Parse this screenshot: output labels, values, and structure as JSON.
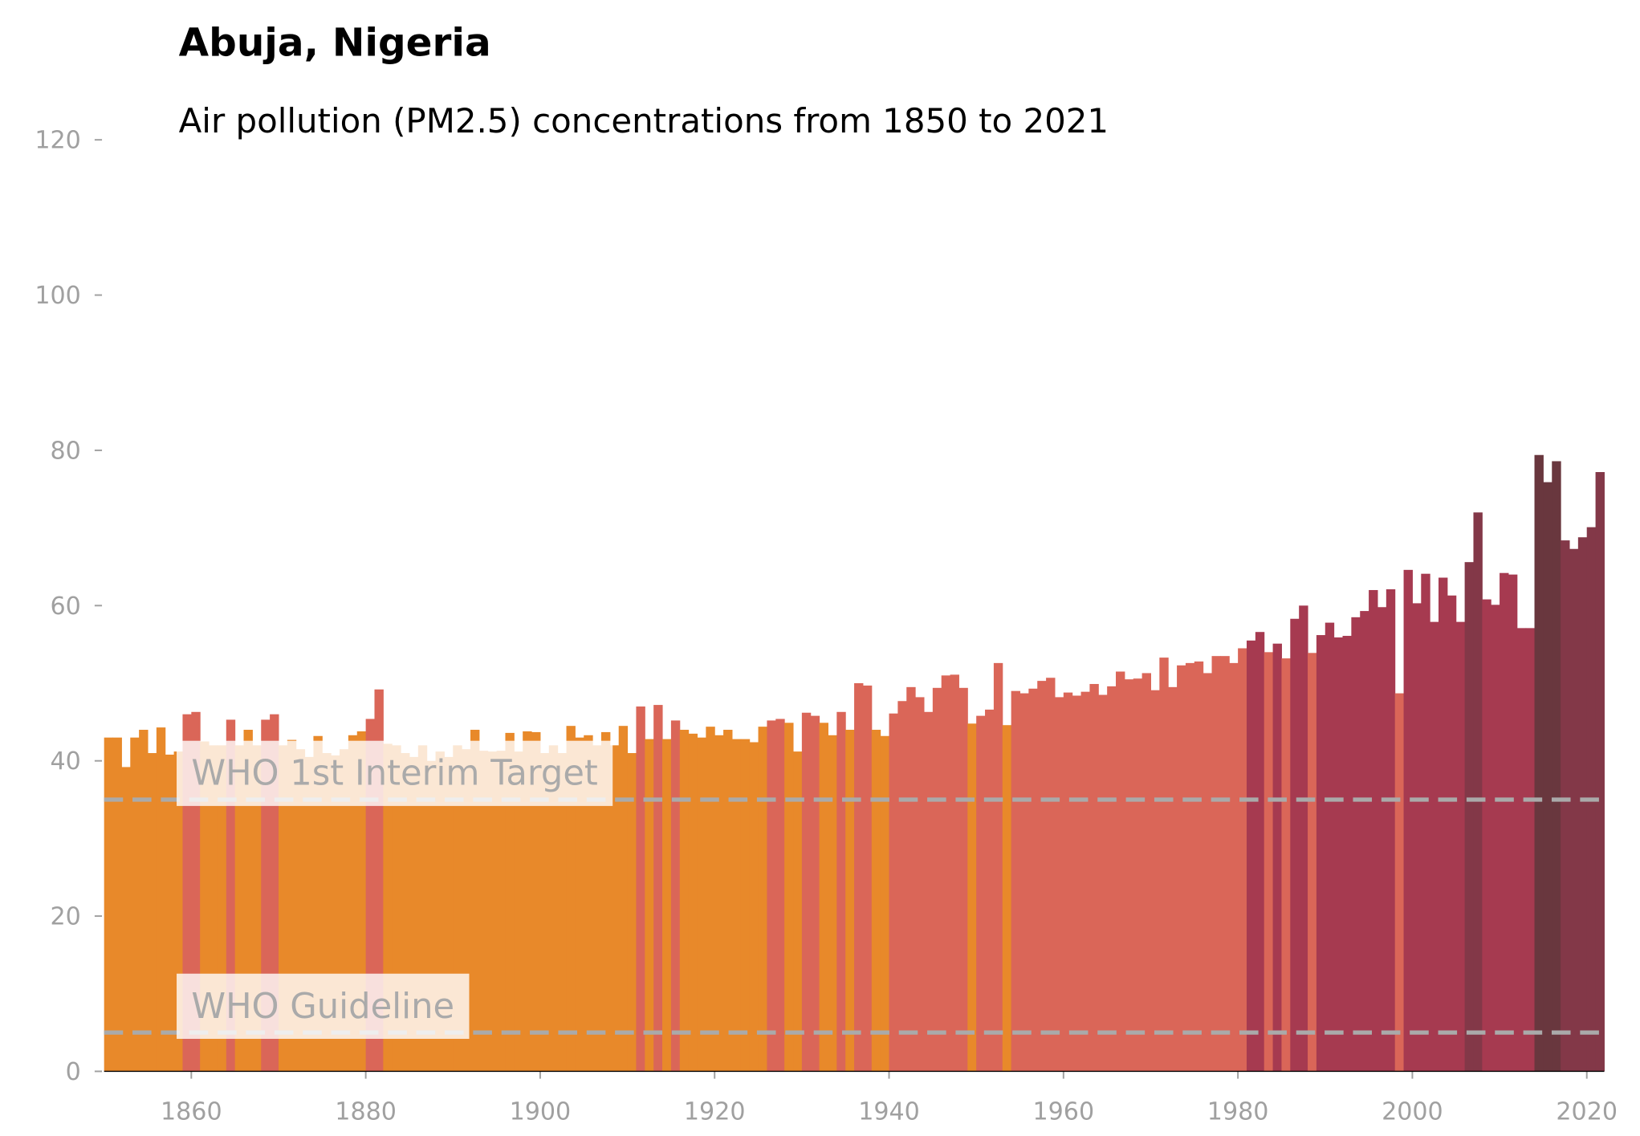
{
  "chart_data": {
    "type": "bar",
    "title": "Abuja, Nigeria",
    "subtitle": "Air pollution (PM2.5) concentrations from 1850 to 2021",
    "x": [
      1850,
      1851,
      1852,
      1853,
      1854,
      1855,
      1856,
      1857,
      1858,
      1859,
      1860,
      1861,
      1862,
      1863,
      1864,
      1865,
      1866,
      1867,
      1868,
      1869,
      1870,
      1871,
      1872,
      1873,
      1874,
      1875,
      1876,
      1877,
      1878,
      1879,
      1880,
      1881,
      1882,
      1883,
      1884,
      1885,
      1886,
      1887,
      1888,
      1889,
      1890,
      1891,
      1892,
      1893,
      1894,
      1895,
      1896,
      1897,
      1898,
      1899,
      1900,
      1901,
      1902,
      1903,
      1904,
      1905,
      1906,
      1907,
      1908,
      1909,
      1910,
      1911,
      1912,
      1913,
      1914,
      1915,
      1916,
      1917,
      1918,
      1919,
      1920,
      1921,
      1922,
      1923,
      1924,
      1925,
      1926,
      1927,
      1928,
      1929,
      1930,
      1931,
      1932,
      1933,
      1934,
      1935,
      1936,
      1937,
      1938,
      1939,
      1940,
      1941,
      1942,
      1943,
      1944,
      1945,
      1946,
      1947,
      1948,
      1949,
      1950,
      1951,
      1952,
      1953,
      1954,
      1955,
      1956,
      1957,
      1958,
      1959,
      1960,
      1961,
      1962,
      1963,
      1964,
      1965,
      1966,
      1967,
      1968,
      1969,
      1970,
      1971,
      1972,
      1973,
      1974,
      1975,
      1976,
      1977,
      1978,
      1979,
      1980,
      1981,
      1982,
      1983,
      1984,
      1985,
      1986,
      1987,
      1988,
      1989,
      1990,
      1991,
      1992,
      1993,
      1994,
      1995,
      1996,
      1997,
      1998,
      1999,
      2000,
      2001,
      2002,
      2003,
      2004,
      2005,
      2006,
      2007,
      2008,
      2009,
      2010,
      2011,
      2012,
      2013,
      2014,
      2015,
      2016,
      2017,
      2018,
      2019,
      2020,
      2021
    ],
    "values": [
      43,
      43,
      39.2,
      43,
      44,
      41,
      44.3,
      40.8,
      41.2,
      46,
      46.3,
      42.5,
      42,
      42,
      45.3,
      42,
      44,
      42,
      45.3,
      46,
      42,
      42.7,
      41.5,
      40.5,
      43.2,
      41,
      40.7,
      41.5,
      43.3,
      43.8,
      45.4,
      49.2,
      42.2,
      42,
      41,
      40.5,
      42,
      40,
      41.2,
      40.5,
      42,
      41.5,
      44,
      41.3,
      41.2,
      41.3,
      43.6,
      41.2,
      43.8,
      43.7,
      41,
      42,
      41,
      44.5,
      43,
      43.3,
      42,
      43.7,
      42,
      44.5,
      41,
      47,
      42.8,
      47.2,
      42.8,
      45.2,
      44,
      43.5,
      43,
      44.4,
      43.3,
      44,
      42.8,
      42.8,
      42.4,
      44.4,
      45.2,
      45.4,
      44.9,
      41.2,
      46.2,
      45.8,
      44.9,
      43.3,
      46.3,
      44,
      50,
      49.7,
      44,
      43.2,
      46.1,
      47.7,
      49.5,
      48.2,
      46.3,
      49.4,
      51,
      51.1,
      49.4,
      44.8,
      45.8,
      46.6,
      52.6,
      44.6,
      49,
      48.7,
      49.3,
      50.3,
      50.7,
      48.2,
      48.8,
      48.4,
      48.9,
      49.9,
      48.5,
      49.6,
      51.5,
      50.5,
      50.6,
      51.3,
      49.1,
      53.3,
      49.5,
      52.3,
      52.6,
      52.8,
      51.3,
      53.5,
      53.5,
      52.6,
      54.5,
      55.5,
      56.6,
      54,
      55.1,
      53.2,
      58.3,
      60,
      53.9,
      56.2,
      57.8,
      55.9,
      56.1,
      58.5,
      59.3,
      62,
      59.8,
      62.1,
      48.7,
      64.6,
      60.3,
      64.1,
      57.9,
      63.6,
      61.3,
      57.9,
      65.6,
      72,
      60.8,
      60.1,
      64.2,
      64,
      57.1,
      57.1,
      79.4,
      75.9,
      78.6,
      68.4,
      67.3,
      68.8,
      70.1,
      77.2
    ],
    "colors": [
      "#e8892a",
      "#e8892a",
      "#e8892a",
      "#e8892a",
      "#e8892a",
      "#e8892a",
      "#e8892a",
      "#e8892a",
      "#e8892a",
      "#da6658",
      "#da6658",
      "#e8892a",
      "#e8892a",
      "#e8892a",
      "#da6658",
      "#e8892a",
      "#e8892a",
      "#e8892a",
      "#da6658",
      "#da6658",
      "#e8892a",
      "#e8892a",
      "#e8892a",
      "#e8892a",
      "#e8892a",
      "#e8892a",
      "#e8892a",
      "#e8892a",
      "#e8892a",
      "#e8892a",
      "#da6658",
      "#da6658",
      "#e8892a",
      "#e8892a",
      "#e8892a",
      "#e8892a",
      "#e8892a",
      "#e8892a",
      "#e8892a",
      "#e8892a",
      "#e8892a",
      "#e8892a",
      "#e8892a",
      "#e8892a",
      "#e8892a",
      "#e8892a",
      "#e8892a",
      "#e8892a",
      "#e8892a",
      "#e8892a",
      "#e8892a",
      "#e8892a",
      "#e8892a",
      "#e8892a",
      "#e8892a",
      "#e8892a",
      "#e8892a",
      "#e8892a",
      "#e8892a",
      "#e8892a",
      "#e8892a",
      "#da6658",
      "#e8892a",
      "#da6658",
      "#e8892a",
      "#da6658",
      "#e8892a",
      "#e8892a",
      "#e8892a",
      "#e8892a",
      "#e8892a",
      "#e8892a",
      "#e8892a",
      "#e8892a",
      "#e8892a",
      "#e8892a",
      "#da6658",
      "#da6658",
      "#e8892a",
      "#e8892a",
      "#da6658",
      "#da6658",
      "#e8892a",
      "#e8892a",
      "#da6658",
      "#e8892a",
      "#da6658",
      "#da6658",
      "#e8892a",
      "#e8892a",
      "#da6658",
      "#da6658",
      "#da6658",
      "#da6658",
      "#da6658",
      "#da6658",
      "#da6658",
      "#da6658",
      "#da6658",
      "#e8892a",
      "#da6658",
      "#da6658",
      "#da6658",
      "#e8892a",
      "#da6658",
      "#da6658",
      "#da6658",
      "#da6658",
      "#da6658",
      "#da6658",
      "#da6658",
      "#da6658",
      "#da6658",
      "#da6658",
      "#da6658",
      "#da6658",
      "#da6658",
      "#da6658",
      "#da6658",
      "#da6658",
      "#da6658",
      "#da6658",
      "#da6658",
      "#da6658",
      "#da6658",
      "#da6658",
      "#da6658",
      "#da6658",
      "#da6658",
      "#da6658",
      "#da6658",
      "#a63a50",
      "#a63a50",
      "#da6658",
      "#a63a50",
      "#da6658",
      "#a63a50",
      "#a63a50",
      "#da6658",
      "#a63a50",
      "#a63a50",
      "#a63a50",
      "#a63a50",
      "#a63a50",
      "#a63a50",
      "#a63a50",
      "#a63a50",
      "#a63a50",
      "#da6658",
      "#a63a50",
      "#a63a50",
      "#a63a50",
      "#a63a50",
      "#a63a50",
      "#a63a50",
      "#a63a50",
      "#833848",
      "#833848",
      "#a63a50",
      "#a63a50",
      "#a63a50",
      "#a63a50",
      "#a63a50",
      "#a63a50",
      "#69373e",
      "#69373e",
      "#69373e",
      "#833848",
      "#833848",
      "#833848",
      "#833848",
      "#833848"
    ],
    "xlim": [
      1850,
      2022
    ],
    "xticks": [
      1860,
      1880,
      1900,
      1920,
      1940,
      1960,
      1980,
      2000,
      2020
    ],
    "ylim": [
      0,
      120
    ],
    "yticks": [
      0,
      20,
      40,
      60,
      80,
      100,
      120
    ],
    "reference_lines": [
      {
        "value": 35,
        "label": "WHO 1st Interim Target"
      },
      {
        "value": 5,
        "label": "WHO Guideline"
      }
    ]
  }
}
